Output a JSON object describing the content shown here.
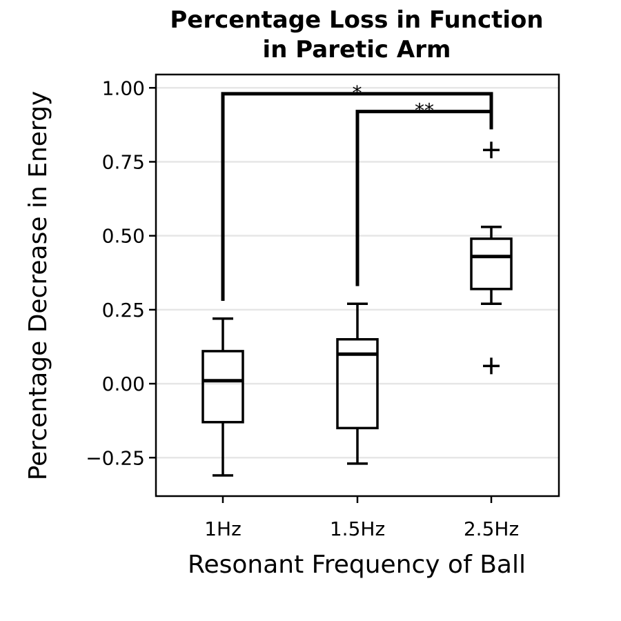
{
  "chart_data": {
    "type": "box",
    "title_lines": [
      "Percentage Loss in Function",
      "in Paretic Arm"
    ],
    "xlabel": "Resonant Frequency of Ball",
    "ylabel": "Percentage Decrease in Energy",
    "ylim": [
      -0.38,
      1.045
    ],
    "yticks": [
      -0.25,
      0.0,
      0.25,
      0.5,
      0.75,
      1.0
    ],
    "ytick_labels": [
      "−0.25",
      "0.00",
      "0.25",
      "0.50",
      "0.75",
      "1.00"
    ],
    "grid": "horizontal",
    "categories": [
      "1Hz",
      "1.5Hz",
      "2.5Hz"
    ],
    "boxes": [
      {
        "category": "1Hz",
        "whisker_low": -0.31,
        "q1": -0.13,
        "median": 0.01,
        "q3": 0.11,
        "whisker_high": 0.22,
        "outliers": []
      },
      {
        "category": "1.5Hz",
        "whisker_low": -0.27,
        "q1": -0.15,
        "median": 0.1,
        "q3": 0.15,
        "whisker_high": 0.27,
        "outliers": []
      },
      {
        "category": "2.5Hz",
        "whisker_low": 0.27,
        "q1": 0.32,
        "median": 0.43,
        "q3": 0.49,
        "whisker_high": 0.53,
        "outliers": [
          0.79,
          0.06
        ]
      }
    ],
    "significance": [
      {
        "from": "1Hz",
        "to": "2.5Hz",
        "label": "*",
        "y": 0.98,
        "left_end": 0.28,
        "right_end": 0.86
      },
      {
        "from": "1.5Hz",
        "to": "2.5Hz",
        "label": "**",
        "y": 0.92,
        "left_end": 0.33,
        "right_end": 0.86
      }
    ]
  }
}
